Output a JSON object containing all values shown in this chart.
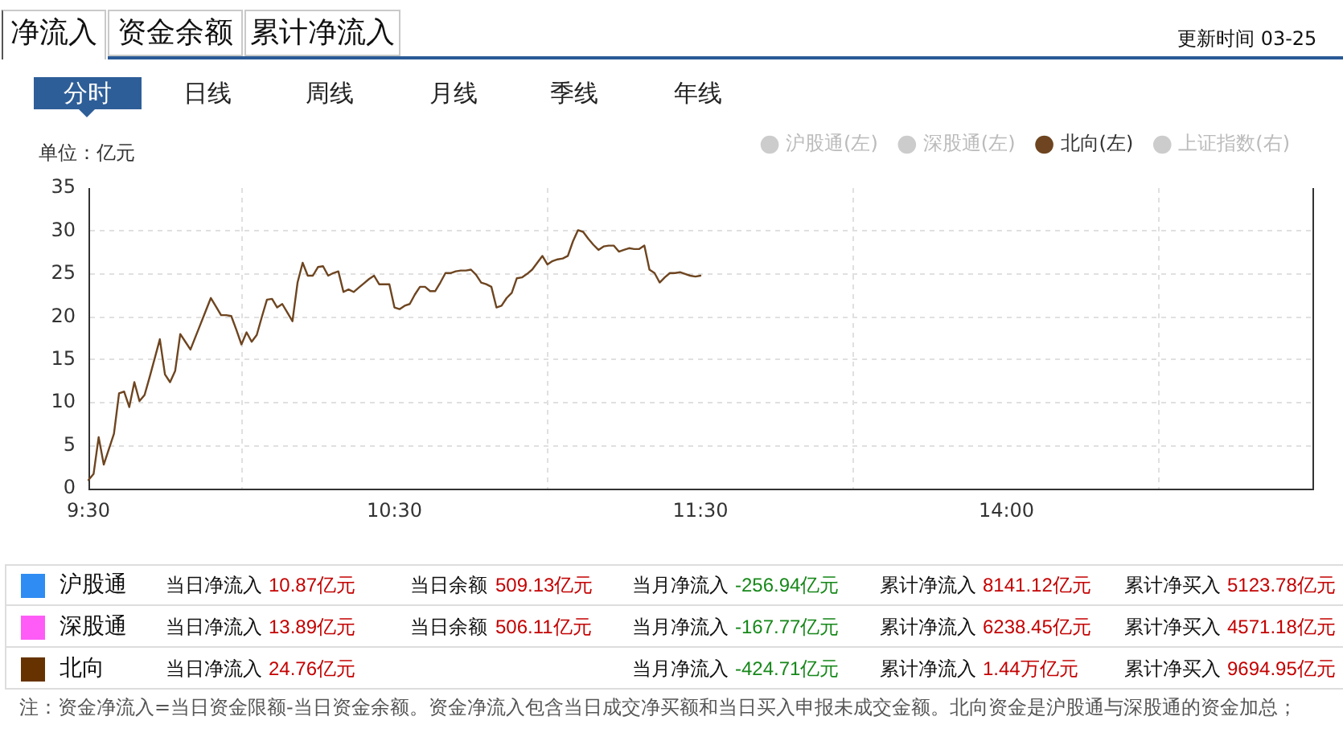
{
  "chart_data": {
    "type": "line",
    "ylabel": "单位：亿元",
    "categories": [
      "9:30",
      null,
      null,
      null,
      null,
      null,
      null,
      null,
      null,
      null,
      null,
      null,
      null,
      null,
      null,
      null,
      null,
      null,
      null,
      null,
      null,
      null,
      null,
      null,
      null,
      null,
      null,
      null,
      null,
      null,
      null,
      null,
      null,
      null,
      null,
      null,
      null,
      null,
      null,
      null,
      null,
      null,
      null,
      null,
      null,
      null,
      null,
      null,
      null,
      null,
      null,
      null,
      null,
      null,
      null,
      null,
      null,
      null,
      null,
      null,
      "10:30",
      null,
      null,
      null,
      null,
      null,
      null,
      null,
      null,
      null,
      null,
      null,
      null,
      null,
      null,
      null,
      null,
      null,
      null,
      null,
      null,
      null,
      null,
      null,
      null,
      null,
      null,
      null,
      null,
      null,
      null,
      null,
      null,
      null,
      null,
      null,
      null,
      null,
      null,
      null,
      null,
      null,
      null,
      null,
      null,
      null,
      null,
      null,
      null,
      null,
      null,
      null,
      null,
      null,
      null,
      null,
      null,
      null,
      null,
      null,
      "11:30",
      null,
      null,
      null,
      null,
      null,
      null,
      null,
      null,
      null,
      null,
      null,
      null,
      null,
      null,
      null,
      null,
      null,
      null,
      null,
      null,
      null,
      null,
      null,
      null,
      null,
      null,
      null,
      null,
      null,
      null,
      null,
      null,
      null,
      null,
      null,
      null,
      null,
      null,
      null,
      null,
      null,
      null,
      null,
      null,
      null,
      null,
      null,
      null,
      null,
      null,
      null,
      null,
      null,
      null,
      null,
      null,
      null,
      null,
      null,
      "14:00",
      null,
      null,
      null,
      null,
      null,
      null,
      null,
      null,
      null,
      null,
      null,
      null,
      null,
      null,
      null,
      null,
      null,
      null,
      null,
      null,
      null,
      null,
      null,
      null,
      null,
      null,
      null,
      null,
      null,
      null,
      null,
      null,
      null,
      null,
      null,
      null,
      null,
      null,
      null,
      null,
      null,
      null,
      null,
      null,
      null,
      null,
      null,
      null,
      null,
      null,
      null,
      null,
      null,
      null,
      null,
      null,
      null,
      null,
      null,
      null
    ],
    "ylim": [
      0,
      35
    ],
    "yticks": [
      0,
      5,
      10,
      15,
      20,
      25,
      30,
      35
    ],
    "grid": true,
    "legend": "top right",
    "marker": "none",
    "line_style": "solid",
    "series": [
      {
        "name": "沪股通(左)",
        "color": "#cccccc",
        "values": [
          null,
          null,
          null,
          null,
          null,
          null,
          null,
          null,
          null,
          null,
          null,
          null,
          null,
          null,
          null,
          null,
          null,
          null,
          null,
          null,
          null,
          null,
          null,
          null,
          null,
          null,
          null,
          null,
          null,
          null,
          null,
          null,
          null,
          null,
          null,
          null,
          null,
          null,
          null,
          null,
          null,
          null,
          null,
          null,
          null,
          null,
          null,
          null,
          null,
          null,
          null,
          null,
          null,
          null,
          null,
          null,
          null,
          null,
          null,
          null,
          null,
          null,
          null,
          null,
          null,
          null,
          null,
          null,
          null,
          null,
          null,
          null,
          null,
          null,
          null,
          null,
          null,
          null,
          null,
          null,
          null,
          null,
          null,
          null,
          null,
          null,
          null,
          null,
          null,
          null,
          null,
          null,
          null,
          null,
          null,
          null,
          null,
          null,
          null,
          null,
          null,
          null,
          null,
          null,
          null,
          null,
          null,
          null,
          null,
          null,
          null,
          null,
          null,
          null,
          null,
          null,
          null,
          null,
          null,
          null,
          null,
          null,
          null,
          null,
          null,
          null,
          null,
          null,
          null,
          null,
          null,
          null,
          null,
          null,
          null,
          null,
          null,
          null,
          null,
          null,
          null,
          null,
          null,
          null,
          null,
          null,
          null,
          null,
          null,
          null,
          null,
          null,
          null,
          null,
          null,
          null,
          null,
          null,
          null,
          null,
          null,
          null,
          null,
          null,
          null,
          null,
          null,
          null,
          null,
          null,
          null,
          null,
          null,
          null,
          null,
          null,
          null,
          null,
          null,
          null,
          null,
          null,
          null,
          null,
          null,
          null,
          null,
          null,
          null,
          null,
          null,
          null,
          null,
          null,
          null,
          null,
          null,
          null,
          null,
          null,
          null,
          null,
          null,
          null,
          null,
          null,
          null,
          null,
          null,
          null,
          null,
          null,
          null,
          null,
          null,
          null,
          null,
          null,
          null,
          null,
          null,
          null,
          null,
          null,
          null,
          null,
          null,
          null,
          null,
          null,
          null,
          null,
          null,
          null,
          null,
          null,
          null,
          null,
          null,
          null,
          null
        ]
      },
      {
        "name": "深股通(左)",
        "color": "#cccccc",
        "values": [
          null,
          null,
          null,
          null,
          null,
          null,
          null,
          null,
          null,
          null,
          null,
          null,
          null,
          null,
          null,
          null,
          null,
          null,
          null,
          null,
          null,
          null,
          null,
          null,
          null,
          null,
          null,
          null,
          null,
          null,
          null,
          null,
          null,
          null,
          null,
          null,
          null,
          null,
          null,
          null,
          null,
          null,
          null,
          null,
          null,
          null,
          null,
          null,
          null,
          null,
          null,
          null,
          null,
          null,
          null,
          null,
          null,
          null,
          null,
          null,
          null,
          null,
          null,
          null,
          null,
          null,
          null,
          null,
          null,
          null,
          null,
          null,
          null,
          null,
          null,
          null,
          null,
          null,
          null,
          null,
          null,
          null,
          null,
          null,
          null,
          null,
          null,
          null,
          null,
          null,
          null,
          null,
          null,
          null,
          null,
          null,
          null,
          null,
          null,
          null,
          null,
          null,
          null,
          null,
          null,
          null,
          null,
          null,
          null,
          null,
          null,
          null,
          null,
          null,
          null,
          null,
          null,
          null,
          null,
          null,
          null,
          null,
          null,
          null,
          null,
          null,
          null,
          null,
          null,
          null,
          null,
          null,
          null,
          null,
          null,
          null,
          null,
          null,
          null,
          null,
          null,
          null,
          null,
          null,
          null,
          null,
          null,
          null,
          null,
          null,
          null,
          null,
          null,
          null,
          null,
          null,
          null,
          null,
          null,
          null,
          null,
          null,
          null,
          null,
          null,
          null,
          null,
          null,
          null,
          null,
          null,
          null,
          null,
          null,
          null,
          null,
          null,
          null,
          null,
          null,
          null,
          null,
          null,
          null,
          null,
          null,
          null,
          null,
          null,
          null,
          null,
          null,
          null,
          null,
          null,
          null,
          null,
          null,
          null,
          null,
          null,
          null,
          null,
          null,
          null,
          null,
          null,
          null,
          null,
          null,
          null,
          null,
          null,
          null,
          null,
          null,
          null,
          null,
          null,
          null,
          null,
          null,
          null,
          null,
          null,
          null,
          null,
          null,
          null,
          null,
          null,
          null,
          null,
          null,
          null,
          null,
          null,
          null,
          null,
          null,
          null
        ]
      },
      {
        "name": "北向(左)",
        "color": "#6e4520",
        "values": [
          1.0,
          1.7,
          6.0,
          2.8,
          4.6,
          6.4,
          11.1,
          11.3,
          9.5,
          12.4,
          10.2,
          10.9,
          13.0,
          15.2,
          17.4,
          13.3,
          12.4,
          13.7,
          18.0,
          17.1,
          16.2,
          17.7,
          19.2,
          20.7,
          22.2,
          21.2,
          20.2,
          20.2,
          20.1,
          18.5,
          16.8,
          18.2,
          17.1,
          17.9,
          20.0,
          22.0,
          22.1,
          21.1,
          21.5,
          20.5,
          19.5,
          24.0,
          26.3,
          24.8,
          24.8,
          25.8,
          25.9,
          24.8,
          25.1,
          25.3,
          22.9,
          23.2,
          22.9,
          23.4,
          23.9,
          24.4,
          24.8,
          23.8,
          23.8,
          23.8,
          21.1,
          20.9,
          21.3,
          21.5,
          22.6,
          23.5,
          23.5,
          23.0,
          23.0,
          24.0,
          25.1,
          25.1,
          25.3,
          25.4,
          25.4,
          25.5,
          24.9,
          24.0,
          23.8,
          23.5,
          21.1,
          21.3,
          22.2,
          22.8,
          24.5,
          24.6,
          25.0,
          25.5,
          26.3,
          27.1,
          26.1,
          26.5,
          26.7,
          26.8,
          27.1,
          28.8,
          30.1,
          29.9,
          29.1,
          28.4,
          27.8,
          28.2,
          28.3,
          28.3,
          27.6,
          27.8,
          28.0,
          27.9,
          27.9,
          28.3,
          25.5,
          25.1,
          24.0,
          24.6,
          25.1,
          25.1,
          25.2,
          25.0,
          24.8,
          24.7,
          24.8,
          null,
          null,
          null,
          null,
          null,
          null,
          null,
          null,
          null,
          null,
          null,
          null,
          null,
          null,
          null,
          null,
          null,
          null,
          null,
          null,
          null,
          null,
          null,
          null,
          null,
          null,
          null,
          null,
          null,
          null,
          null,
          null,
          null,
          null,
          null,
          null,
          null,
          null,
          null,
          null,
          null,
          null,
          null,
          null,
          null,
          null,
          null,
          null,
          null,
          null,
          null,
          null,
          null,
          null,
          null,
          null,
          null,
          null,
          null,
          null,
          null,
          null,
          null,
          null,
          null,
          null,
          null,
          null,
          null,
          null,
          null,
          null,
          null,
          null,
          null,
          null,
          null,
          null,
          null,
          null,
          null,
          null,
          null,
          null,
          null,
          null,
          null,
          null,
          null,
          null,
          null,
          null,
          null,
          null,
          null,
          null,
          null,
          null,
          null,
          null,
          null,
          null,
          null,
          null,
          null,
          null,
          null,
          null,
          null,
          null,
          null,
          null,
          null,
          null,
          null,
          null,
          null,
          null,
          null,
          null
        ]
      },
      {
        "name": "上证指数(右)",
        "color": "#cccccc",
        "values": [
          null,
          null,
          null,
          null,
          null,
          null,
          null,
          null,
          null,
          null,
          null,
          null,
          null,
          null,
          null,
          null,
          null,
          null,
          null,
          null,
          null,
          null,
          null,
          null,
          null,
          null,
          null,
          null,
          null,
          null,
          null,
          null,
          null,
          null,
          null,
          null,
          null,
          null,
          null,
          null,
          null,
          null,
          null,
          null,
          null,
          null,
          null,
          null,
          null,
          null,
          null,
          null,
          null,
          null,
          null,
          null,
          null,
          null,
          null,
          null,
          null,
          null,
          null,
          null,
          null,
          null,
          null,
          null,
          null,
          null,
          null,
          null,
          null,
          null,
          null,
          null,
          null,
          null,
          null,
          null,
          null,
          null,
          null,
          null,
          null,
          null,
          null,
          null,
          null,
          null,
          null,
          null,
          null,
          null,
          null,
          null,
          null,
          null,
          null,
          null,
          null,
          null,
          null,
          null,
          null,
          null,
          null,
          null,
          null,
          null,
          null,
          null,
          null,
          null,
          null,
          null,
          null,
          null,
          null,
          null,
          null,
          null,
          null,
          null,
          null,
          null,
          null,
          null,
          null,
          null,
          null,
          null,
          null,
          null,
          null,
          null,
          null,
          null,
          null,
          null,
          null,
          null,
          null,
          null,
          null,
          null,
          null,
          null,
          null,
          null,
          null,
          null,
          null,
          null,
          null,
          null,
          null,
          null,
          null,
          null,
          null,
          null,
          null,
          null,
          null,
          null,
          null,
          null,
          null,
          null,
          null,
          null,
          null,
          null,
          null,
          null,
          null,
          null,
          null,
          null,
          null,
          null,
          null,
          null,
          null,
          null,
          null,
          null,
          null,
          null,
          null,
          null,
          null,
          null,
          null,
          null,
          null,
          null,
          null,
          null,
          null,
          null,
          null,
          null,
          null,
          null,
          null,
          null,
          null,
          null,
          null,
          null,
          null,
          null,
          null,
          null,
          null,
          null,
          null,
          null,
          null,
          null,
          null,
          null,
          null,
          null,
          null,
          null,
          null,
          null,
          null,
          null,
          null,
          null,
          null,
          null,
          null,
          null,
          null,
          null,
          null
        ]
      }
    ],
    "annotations": [
      "净流入",
      "资金余额",
      "累计净流入",
      "更新时间 03-25",
      "分时",
      "日线",
      "周线",
      "月线",
      "季线",
      "年线",
      "沪股通",
      "当日净流入",
      "10.87亿元",
      "当日余额",
      "509.13亿元",
      "当月净流入",
      "-256.94亿元",
      "累计净流入",
      "8141.12亿元",
      "累计净买入",
      "5123.78亿元",
      "深股通",
      "当日净流入",
      "13.89亿元",
      "当日余额",
      "506.11亿元",
      "当月净流入",
      "-167.77亿元",
      "累计净流入",
      "6238.45亿元",
      "累计净买入",
      "4571.18亿元",
      "北向",
      "当日净流入",
      "24.76亿元",
      "当月净流入",
      "-424.71亿元",
      "累计净流入",
      "1.44万亿元",
      "累计净买入",
      "9694.95亿元",
      "注：资金净流入=当日资金限额-当日资金余额。资金净流入包含当日成交净买额和当日买入申报未成交金额。北向资金是沪股通与深股通的资金加总；"
    ]
  }
}
